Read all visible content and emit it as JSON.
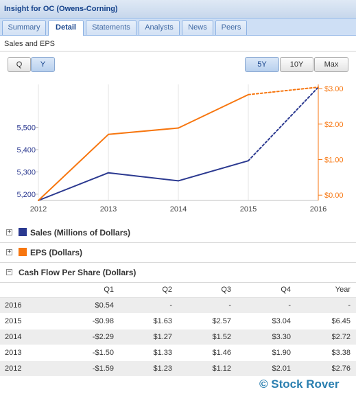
{
  "window": {
    "title": "Insight for OC (Owens-Corning)"
  },
  "tabs": [
    {
      "label": "Summary",
      "active": false
    },
    {
      "label": "Detail",
      "active": true
    },
    {
      "label": "Statements",
      "active": false
    },
    {
      "label": "Analysts",
      "active": false
    },
    {
      "label": "News",
      "active": false
    },
    {
      "label": "Peers",
      "active": false
    }
  ],
  "section_title": "Sales and EPS",
  "period_buttons": [
    {
      "label": "Q",
      "active": false
    },
    {
      "label": "Y",
      "active": true
    }
  ],
  "range_buttons": [
    {
      "label": "5Y",
      "active": true
    },
    {
      "label": "10Y",
      "active": false
    },
    {
      "label": "Max",
      "active": false
    }
  ],
  "colors": {
    "sales": "#2b3990",
    "eps": "#f7760f",
    "accent": "#15428b",
    "watermark": "#2a7fb0"
  },
  "chart_data": {
    "type": "line",
    "x": [
      "2012",
      "2013",
      "2014",
      "2015",
      "2016"
    ],
    "series": [
      {
        "name": "Sales (Millions of Dollars)",
        "axis": "left",
        "values": [
          5172,
          5296,
          5260,
          5350,
          5680
        ],
        "estimated_from_index": 3,
        "color": "#2b3990"
      },
      {
        "name": "EPS (Dollars)",
        "axis": "right",
        "values": [
          -0.15,
          1.71,
          1.89,
          2.83,
          3.04
        ],
        "estimated_from_index": 3,
        "color": "#f7760f"
      }
    ],
    "y_left": {
      "ticks": [
        "5,200",
        "5,300",
        "5,400",
        "5,500"
      ],
      "tick_values": [
        5200,
        5300,
        5400,
        5500
      ],
      "ylim": [
        5172,
        5680
      ]
    },
    "y_right": {
      "ticks": [
        "$0.00",
        "$1.00",
        "$2.00",
        "$3.00"
      ],
      "tick_values": [
        0,
        1,
        2,
        3
      ],
      "ylim": [
        -0.15,
        3.04
      ]
    },
    "grid": "vertical",
    "title": "",
    "xlabel": "",
    "ylabel": ""
  },
  "groups": [
    {
      "label": "Sales (Millions of Dollars)",
      "expanded": false,
      "toggle": "+",
      "swatch": "#2b3990"
    },
    {
      "label": "EPS (Dollars)",
      "expanded": false,
      "toggle": "+",
      "swatch": "#f7760f"
    },
    {
      "label": "Cash Flow Per Share (Dollars)",
      "expanded": true,
      "toggle": "−"
    }
  ],
  "cfps_table": {
    "columns": [
      "",
      "Q1",
      "Q2",
      "Q3",
      "Q4",
      "Year"
    ],
    "rows": [
      [
        "2016",
        "$0.54",
        "-",
        "-",
        "-",
        "-"
      ],
      [
        "2015",
        "-$0.98",
        "$1.63",
        "$2.57",
        "$3.04",
        "$6.45"
      ],
      [
        "2014",
        "-$2.29",
        "$1.27",
        "$1.52",
        "$3.30",
        "$2.72"
      ],
      [
        "2013",
        "-$1.50",
        "$1.33",
        "$1.46",
        "$1.90",
        "$3.38"
      ],
      [
        "2012",
        "-$1.59",
        "$1.23",
        "$1.12",
        "$2.01",
        "$2.76"
      ]
    ]
  },
  "watermark": "© Stock Rover"
}
